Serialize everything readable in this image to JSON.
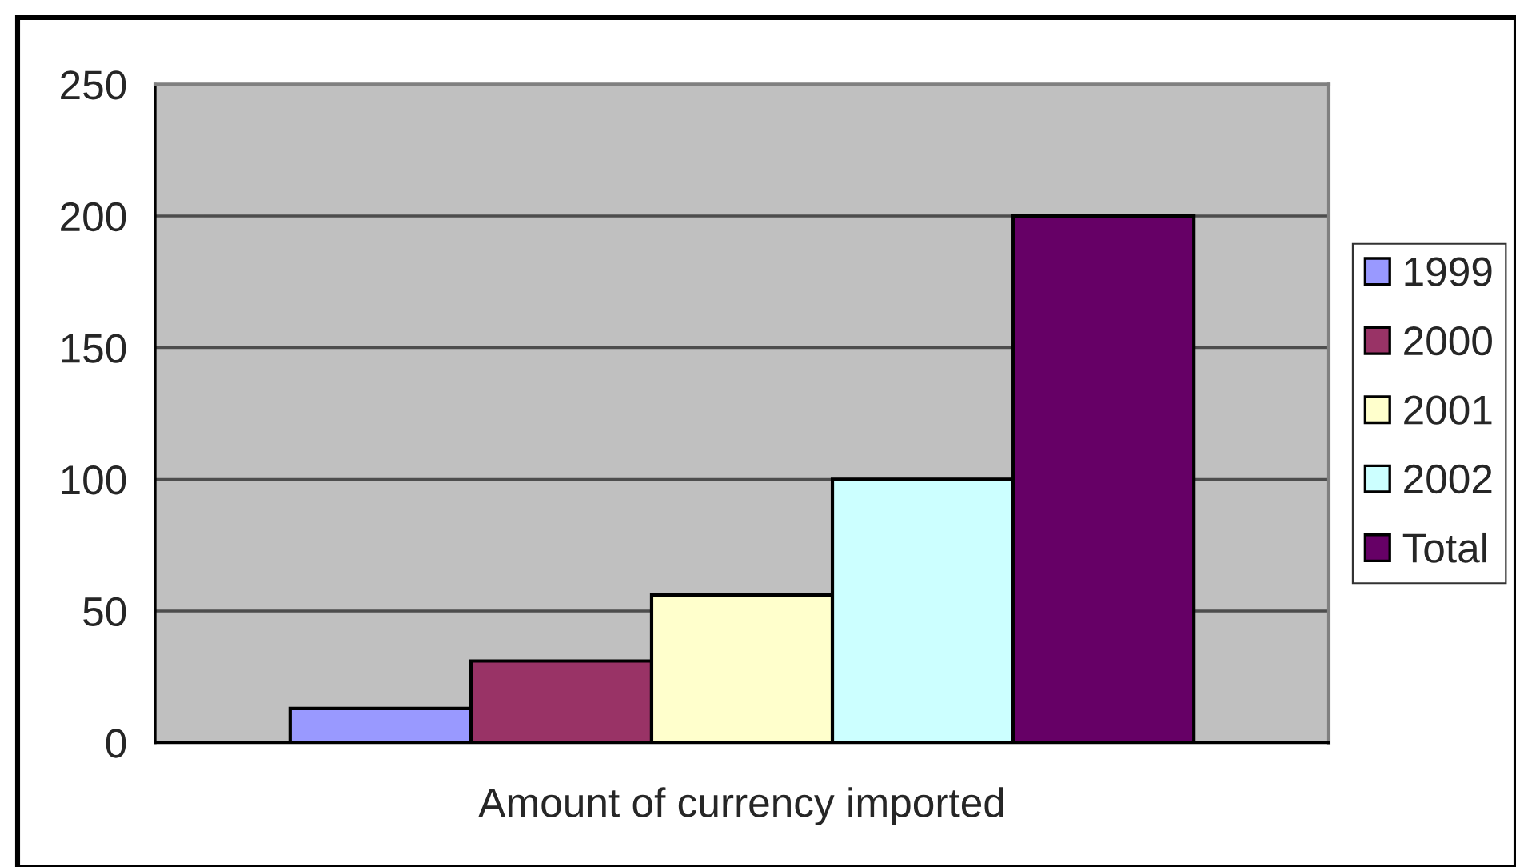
{
  "chart_data": {
    "type": "bar",
    "categories": [
      "Amount of currency imported"
    ],
    "series": [
      {
        "name": "1999",
        "color": "#9999ff",
        "values": [
          13
        ]
      },
      {
        "name": "2000",
        "color": "#993366",
        "values": [
          31
        ]
      },
      {
        "name": "2001",
        "color": "#ffffcc",
        "values": [
          56
        ]
      },
      {
        "name": "2002",
        "color": "#ccffff",
        "values": [
          100
        ]
      },
      {
        "name": "Total",
        "color": "#660066",
        "values": [
          200
        ]
      }
    ],
    "ylim": [
      0,
      250
    ],
    "yticks": [
      0,
      50,
      100,
      150,
      200,
      250
    ],
    "grid": "y",
    "legend": "right"
  }
}
